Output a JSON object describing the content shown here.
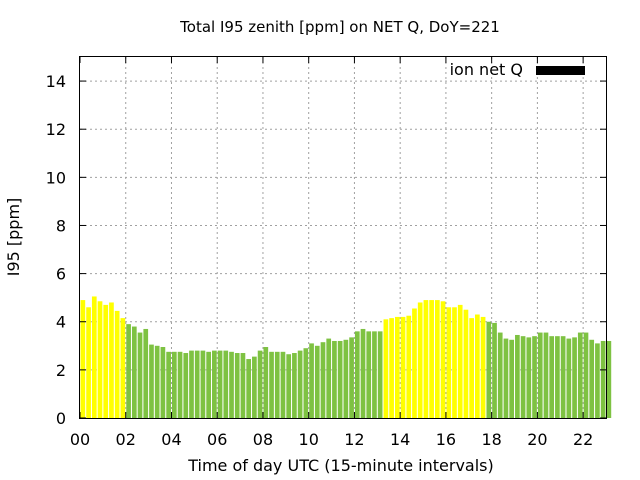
{
  "chart_data": {
    "type": "bar",
    "title": "Total I95 zenith [ppm] on NET Q, DoY=221",
    "xlabel": "Time of day UTC (15-minute intervals)",
    "ylabel": "I95 [ppm]",
    "xlim": [
      0,
      23
    ],
    "ylim": [
      0,
      15
    ],
    "grid": true,
    "legend_position": "top-right",
    "legend": [
      {
        "name": "ion net Q",
        "color": "#000000"
      }
    ],
    "x_tick_labels": [
      "00",
      "02",
      "04",
      "06",
      "08",
      "10",
      "12",
      "14",
      "16",
      "18",
      "20",
      "22"
    ],
    "y_tick_labels": [
      "0",
      "2",
      "4",
      "6",
      "8",
      "10",
      "12",
      "14"
    ],
    "interval_hours": 0.25,
    "colors": {
      "yellow": "#ffff00",
      "green": "#7ec242"
    },
    "values": [
      4.9,
      4.6,
      5.05,
      4.85,
      4.7,
      4.8,
      4.45,
      4.15,
      3.9,
      3.8,
      3.55,
      3.7,
      3.05,
      3.0,
      2.95,
      2.75,
      2.75,
      2.75,
      2.7,
      2.8,
      2.8,
      2.8,
      2.75,
      2.8,
      2.8,
      2.8,
      2.75,
      2.7,
      2.7,
      2.45,
      2.55,
      2.8,
      2.95,
      2.75,
      2.75,
      2.75,
      2.65,
      2.7,
      2.8,
      2.9,
      3.1,
      3.0,
      3.15,
      3.3,
      3.2,
      3.2,
      3.25,
      3.35,
      3.6,
      3.7,
      3.6,
      3.6,
      3.6,
      4.1,
      4.15,
      4.2,
      4.2,
      4.25,
      4.55,
      4.8,
      4.9,
      4.9,
      4.9,
      4.85,
      4.6,
      4.6,
      4.7,
      4.5,
      4.15,
      4.3,
      4.2,
      4.0,
      3.95,
      3.55,
      3.3,
      3.25,
      3.45,
      3.4,
      3.35,
      3.4,
      3.55,
      3.55,
      3.4,
      3.4,
      3.4,
      3.3,
      3.35,
      3.55,
      3.55,
      3.25,
      3.1,
      3.2,
      3.2
    ],
    "bar_colors": [
      "yellow",
      "yellow",
      "yellow",
      "yellow",
      "yellow",
      "yellow",
      "yellow",
      "yellow",
      "green",
      "green",
      "green",
      "green",
      "green",
      "green",
      "green",
      "green",
      "green",
      "green",
      "green",
      "green",
      "green",
      "green",
      "green",
      "green",
      "green",
      "green",
      "green",
      "green",
      "green",
      "green",
      "green",
      "green",
      "green",
      "green",
      "green",
      "green",
      "green",
      "green",
      "green",
      "green",
      "green",
      "green",
      "green",
      "green",
      "green",
      "green",
      "green",
      "green",
      "green",
      "green",
      "green",
      "green",
      "green",
      "yellow",
      "yellow",
      "yellow",
      "yellow",
      "yellow",
      "yellow",
      "yellow",
      "yellow",
      "yellow",
      "yellow",
      "yellow",
      "yellow",
      "yellow",
      "yellow",
      "yellow",
      "yellow",
      "yellow",
      "yellow",
      "green",
      "green",
      "green",
      "green",
      "green",
      "green",
      "green",
      "green",
      "green",
      "green",
      "green",
      "green",
      "green",
      "green",
      "green",
      "green",
      "green",
      "green",
      "green",
      "green",
      "green",
      "green"
    ]
  }
}
